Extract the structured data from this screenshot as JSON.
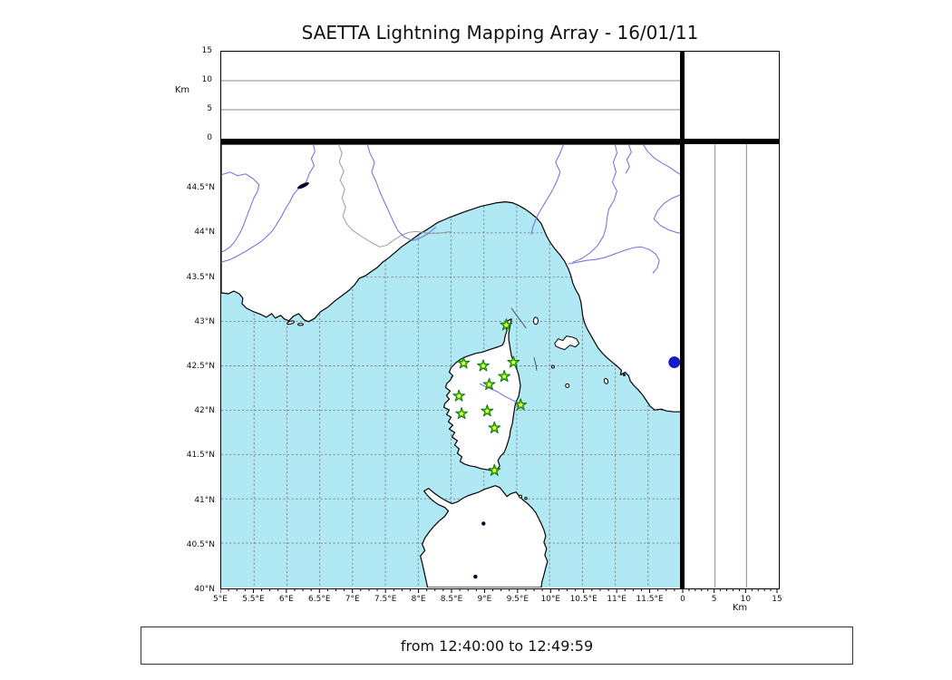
{
  "title": "SAETTA Lightning Mapping Array - 16/01/11",
  "footer": {
    "time_range": "from 12:40:00 to 12:49:59"
  },
  "altitude_panel": {
    "axis_label": "Km",
    "range_km": [
      0,
      15
    ],
    "ticks": [
      {
        "label": "15",
        "km": 15
      },
      {
        "label": "10",
        "km": 10
      },
      {
        "label": "5",
        "km": 5
      },
      {
        "label": "0",
        "km": 0
      }
    ],
    "gridlines_km": [
      5,
      10
    ]
  },
  "right_panel": {
    "axis_label": "Km",
    "range_km": [
      0,
      15
    ],
    "ticks": [
      {
        "label": "0",
        "km": 0
      },
      {
        "label": "5",
        "km": 5
      },
      {
        "label": "10",
        "km": 10
      },
      {
        "label": "15",
        "km": 15
      }
    ],
    "gridlines_km": [
      5,
      10
    ]
  },
  "map_panel": {
    "bounds": {
      "lon_min": 5,
      "lon_max": 12,
      "lat_min": 40,
      "lat_max": 45
    },
    "lat_ticks": [
      {
        "label": "44.5°N",
        "lat": 44.5
      },
      {
        "label": "44°N",
        "lat": 44
      },
      {
        "label": "43.5°N",
        "lat": 43.5
      },
      {
        "label": "43°N",
        "lat": 43
      },
      {
        "label": "42.5°N",
        "lat": 42.5
      },
      {
        "label": "42°N",
        "lat": 42
      },
      {
        "label": "41.5°N",
        "lat": 41.5
      },
      {
        "label": "41°N",
        "lat": 41
      },
      {
        "label": "40.5°N",
        "lat": 40.5
      },
      {
        "label": "40°N",
        "lat": 40
      }
    ],
    "lon_ticks": [
      {
        "label": "5°E",
        "lon": 5
      },
      {
        "label": "5.5°E",
        "lon": 5.5
      },
      {
        "label": "6°E",
        "lon": 6
      },
      {
        "label": "6.5°E",
        "lon": 6.5
      },
      {
        "label": "7°E",
        "lon": 7
      },
      {
        "label": "7.5°E",
        "lon": 7.5
      },
      {
        "label": "8°E",
        "lon": 8
      },
      {
        "label": "8.5°E",
        "lon": 8.5
      },
      {
        "label": "9°E",
        "lon": 9
      },
      {
        "label": "9.5°E",
        "lon": 9.5
      },
      {
        "label": "10°E",
        "lon": 10
      },
      {
        "label": "10.5°E",
        "lon": 10.5
      },
      {
        "label": "11°E",
        "lon": 11
      },
      {
        "label": "11.5°E",
        "lon": 11.5
      }
    ],
    "stations": [
      {
        "lon": 9.34,
        "lat": 42.96
      },
      {
        "lon": 8.69,
        "lat": 42.53
      },
      {
        "lon": 8.99,
        "lat": 42.5
      },
      {
        "lon": 9.45,
        "lat": 42.54
      },
      {
        "lon": 9.31,
        "lat": 42.38
      },
      {
        "lon": 9.08,
        "lat": 42.29
      },
      {
        "lon": 8.62,
        "lat": 42.16
      },
      {
        "lon": 9.56,
        "lat": 42.06
      },
      {
        "lon": 8.66,
        "lat": 41.96
      },
      {
        "lon": 9.05,
        "lat": 41.99
      },
      {
        "lon": 9.16,
        "lat": 41.8
      },
      {
        "lon": 9.16,
        "lat": 41.32
      }
    ],
    "event_dot": {
      "lon": 11.9,
      "lat": 42.54
    },
    "colors": {
      "sea": "#b0e8f4",
      "land": "#ffffff",
      "coast": "#000000",
      "river": "#6b6bdf",
      "country_border": "#9a9a9a",
      "grid": "#777777",
      "station_fill": "#55cc22",
      "station_edge": "#0a7a0a",
      "station_core": "#ffff33",
      "event_dot": "#1818c8",
      "lake": "#000033"
    }
  }
}
